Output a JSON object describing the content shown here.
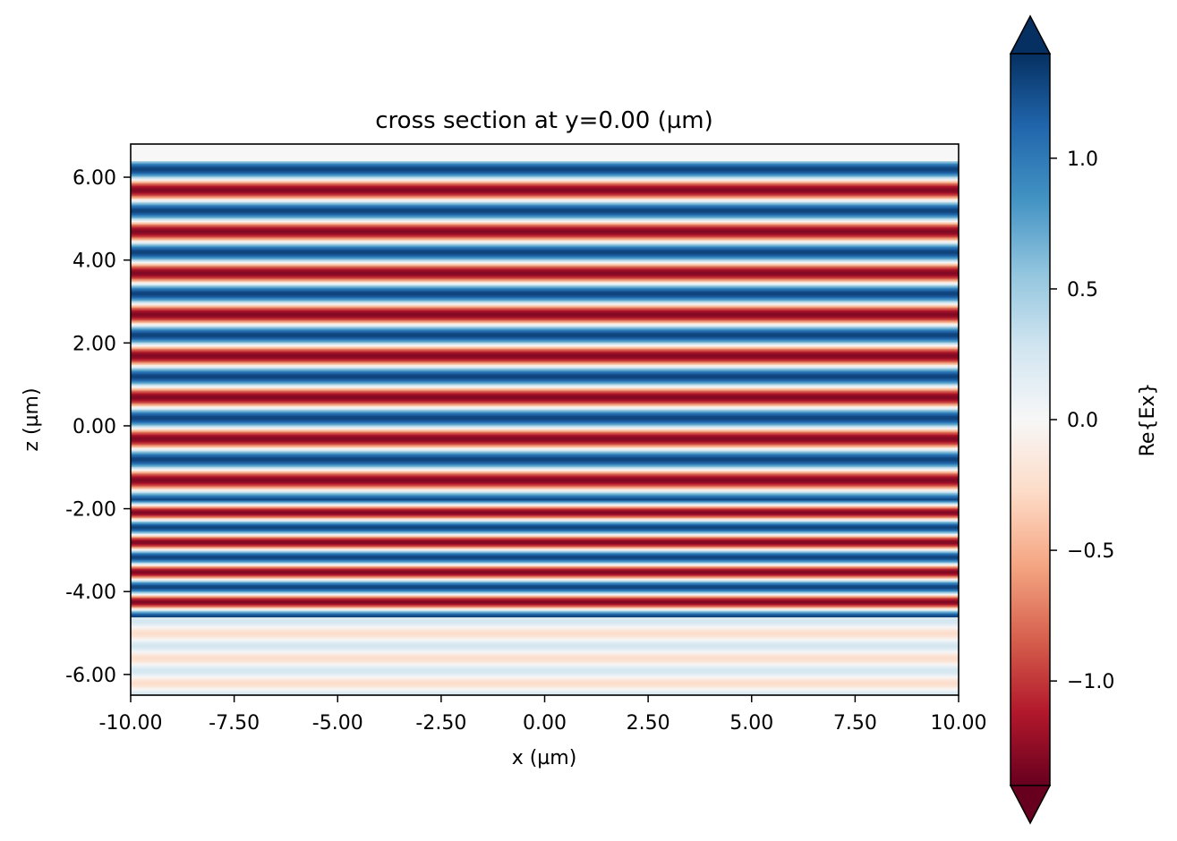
{
  "chart_data": {
    "type": "heatmap",
    "title": "cross section at y=0.00 (µm)",
    "xlabel": "x (µm)",
    "ylabel": "z (µm)",
    "xlim": [
      -10.0,
      10.0
    ],
    "ylim": [
      -6.5,
      6.8
    ],
    "xticks": [
      -10,
      -7.5,
      -5,
      -2.5,
      0,
      2.5,
      5,
      7.5,
      10
    ],
    "xtick_labels": [
      "-10.00",
      "-7.50",
      "-5.00",
      "-2.50",
      "0.00",
      "2.50",
      "5.00",
      "7.50",
      "10.00"
    ],
    "yticks": [
      -6,
      -4,
      -2,
      0,
      2,
      4,
      6
    ],
    "ytick_labels": [
      "-6.00",
      "-4.00",
      "-2.00",
      "0.00",
      "2.00",
      "4.00",
      "6.00"
    ],
    "colorbar": {
      "label": "Re{Ex}",
      "colormap": "RdBu",
      "vmin": -1.4,
      "vmax": 1.4,
      "extend": "both",
      "ticks": [
        -1.0,
        -0.5,
        0.0,
        0.5,
        1.0
      ],
      "tick_labels": [
        "−1.0",
        "−0.5",
        "0.0",
        "0.5",
        "1.0"
      ]
    },
    "field_regions": [
      {
        "region": "upper",
        "z_range": [
          -1.8,
          6.4
        ],
        "amplitude": 1.3,
        "period_um": 1.0,
        "pattern": "horizontal standing-wave fringes"
      },
      {
        "region": "middle",
        "z_range": [
          -4.6,
          -1.8
        ],
        "amplitude": 1.3,
        "period_um": 0.72,
        "pattern": "horizontal standing-wave fringes"
      },
      {
        "region": "lower",
        "z_range": [
          -6.5,
          -4.6
        ],
        "amplitude": 0.25,
        "period_um": 0.6,
        "pattern": "faint fringes"
      }
    ],
    "colors": {
      "dark_red": "#67001f",
      "red": "#d6604d",
      "white": "#f7f7f7",
      "blue": "#4393c3",
      "dark_blue": "#053061"
    }
  }
}
